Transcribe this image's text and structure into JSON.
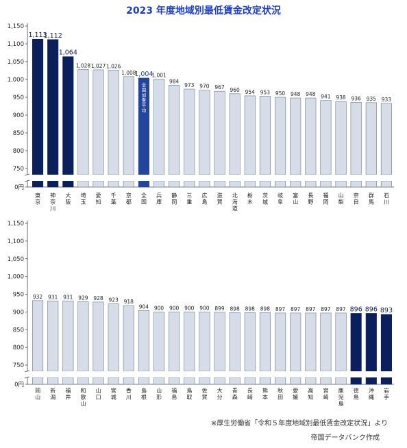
{
  "title": "2023 年度地域別最低賃金改定状況",
  "footer": {
    "source": "※厚生労働省「令和５年度地域別最低賃金改定状況」より",
    "credit": "帝国データバンク作成"
  },
  "colors": {
    "top3": "#0b1f5c",
    "bottom3": "#0b1f5c",
    "average": "#24459c",
    "normal": "#d6dce8"
  },
  "chart_data": [
    {
      "type": "bar",
      "ylim": [
        0,
        1150
      ],
      "break_range": [
        0,
        725
      ],
      "yticks": [
        0,
        750,
        800,
        850,
        900,
        950,
        1000,
        1050,
        1100,
        1150
      ],
      "ytick_labels": [
        "0円",
        "750",
        "800",
        "850",
        "900",
        "950",
        "1,000",
        "1,050",
        "1,100",
        "1,150"
      ],
      "categories": [
        "東京",
        "神奈川",
        "大阪",
        "埼玉",
        "愛知",
        "千葉",
        "京都",
        "全国",
        "兵庫",
        "静岡",
        "三重",
        "広島",
        "滋賀",
        "北海道",
        "栃木",
        "茨城",
        "岐阜",
        "富山",
        "長野",
        "福岡",
        "山梨",
        "奈良",
        "群馬",
        "石川"
      ],
      "values": [
        1113,
        1112,
        1064,
        1028,
        1027,
        1026,
        1008,
        1004,
        1001,
        984,
        973,
        970,
        967,
        960,
        954,
        953,
        950,
        948,
        948,
        941,
        938,
        936,
        935,
        933
      ],
      "value_labels": [
        "1,113",
        "1,112",
        "1,064",
        "1,028",
        "1,027",
        "1,026",
        "1,008",
        "1,004",
        "1,001",
        "984",
        "973",
        "970",
        "967",
        "960",
        "954",
        "953",
        "950",
        "948",
        "948",
        "941",
        "938",
        "936",
        "935",
        "933"
      ],
      "highlight": [
        "top",
        "top",
        "top",
        "normal",
        "normal",
        "normal",
        "normal",
        "average",
        "normal",
        "normal",
        "normal",
        "normal",
        "normal",
        "normal",
        "normal",
        "normal",
        "normal",
        "normal",
        "normal",
        "normal",
        "normal",
        "normal",
        "normal",
        "normal"
      ],
      "annotation": "全国加重平均"
    },
    {
      "type": "bar",
      "ylim": [
        0,
        1150
      ],
      "break_range": [
        0,
        725
      ],
      "yticks": [
        0,
        750,
        800,
        850,
        900,
        950,
        1000,
        1050,
        1100,
        1150
      ],
      "ytick_labels": [
        "0円",
        "750",
        "800",
        "850",
        "900",
        "950",
        "1,000",
        "1,050",
        "1,100",
        "1,150"
      ],
      "categories": [
        "岡山",
        "新潟",
        "福井",
        "和歌山",
        "山口",
        "宮城",
        "香川",
        "島根",
        "山形",
        "福島",
        "鳥取",
        "佐賀",
        "大分",
        "青森",
        "長崎",
        "熊本",
        "秋田",
        "愛媛",
        "高知",
        "宮崎",
        "鹿児島",
        "徳島",
        "沖縄",
        "岩手"
      ],
      "values": [
        932,
        931,
        931,
        929,
        928,
        923,
        918,
        904,
        900,
        900,
        900,
        900,
        899,
        898,
        898,
        898,
        897,
        897,
        897,
        897,
        897,
        896,
        896,
        893
      ],
      "value_labels": [
        "932",
        "931",
        "931",
        "929",
        "928",
        "923",
        "918",
        "904",
        "900",
        "900",
        "900",
        "900",
        "899",
        "898",
        "898",
        "898",
        "897",
        "897",
        "897",
        "897",
        "897",
        "896",
        "896",
        "893"
      ],
      "highlight": [
        "normal",
        "normal",
        "normal",
        "normal",
        "normal",
        "normal",
        "normal",
        "normal",
        "normal",
        "normal",
        "normal",
        "normal",
        "normal",
        "normal",
        "normal",
        "normal",
        "normal",
        "normal",
        "normal",
        "normal",
        "normal",
        "bottom",
        "bottom",
        "bottom"
      ]
    }
  ]
}
